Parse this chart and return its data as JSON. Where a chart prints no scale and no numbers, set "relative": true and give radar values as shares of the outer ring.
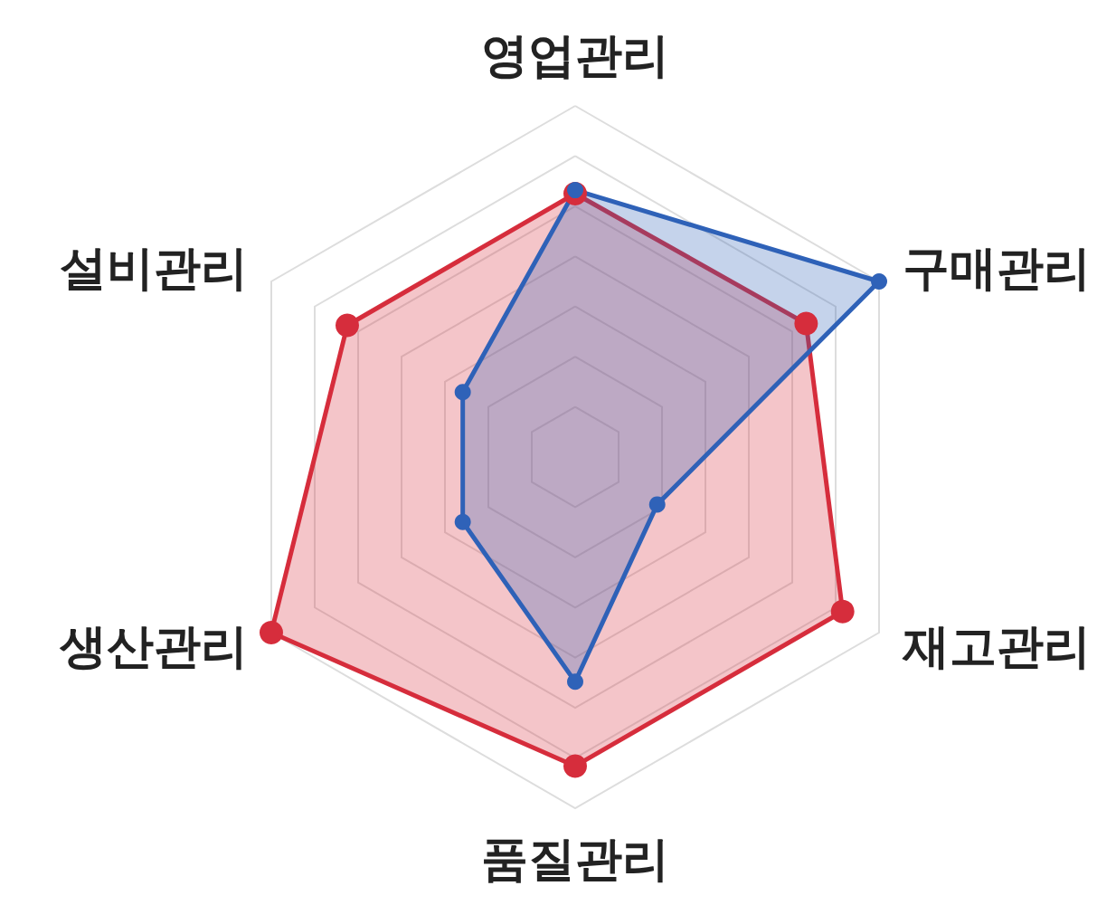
{
  "chart_data": {
    "type": "radar",
    "relative": true,
    "categories": [
      "영업관리",
      "구매관리",
      "재고관리",
      "품질관리",
      "생산관리",
      "설비관리"
    ],
    "series": [
      {
        "color": "#d62d3c",
        "values": [
          0.75,
          0.76,
          0.88,
          0.88,
          1.0,
          0.75
        ]
      },
      {
        "color": "#2f62b8",
        "values": [
          0.76,
          1.0,
          0.27,
          0.64,
          0.37,
          0.37
        ]
      }
    ],
    "marker": "circle"
  }
}
